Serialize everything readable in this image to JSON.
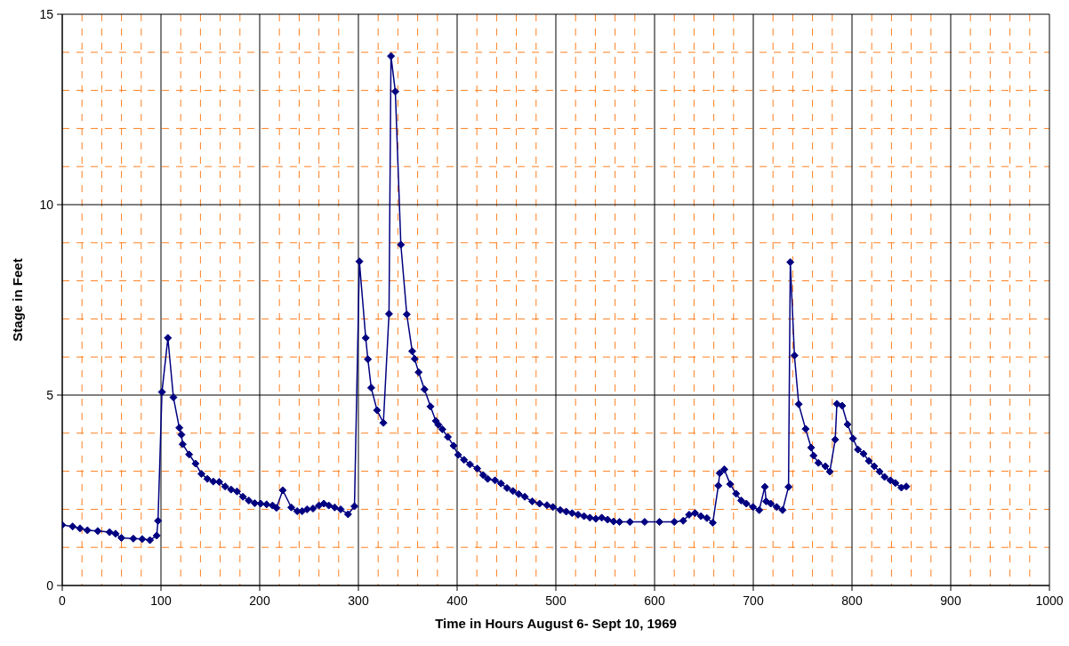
{
  "chart_data": {
    "type": "line",
    "xlabel": "Time in Hours August 6- Sept 10, 1969",
    "ylabel": "Stage in Feet",
    "x": [
      0,
      10.5,
      18,
      25.5,
      36,
      48,
      54,
      60,
      72,
      81,
      88.8,
      95.7,
      97,
      101,
      107,
      112.6,
      118.6,
      120.7,
      122,
      128.5,
      135,
      141,
      147,
      153,
      159,
      165,
      171,
      177,
      183,
      189,
      195,
      201,
      207,
      213,
      217,
      223.4,
      232,
      238,
      243,
      248,
      254,
      260,
      265,
      270,
      276,
      282,
      289.5,
      296,
      301,
      307.4,
      309.6,
      313,
      318.9,
      325.3,
      331,
      333,
      337.4,
      343,
      349,
      354.5,
      357,
      361,
      366.9,
      373,
      378.4,
      381,
      385,
      390.6,
      396.4,
      401,
      407,
      413,
      420.4,
      426.4,
      431,
      438.4,
      444.4,
      450.5,
      456.5,
      462.4,
      468.5,
      476,
      483.5,
      491,
      497,
      504.5,
      510.5,
      516.5,
      522.5,
      528.5,
      534.5,
      540.5,
      546.5,
      552.5,
      558.5,
      564.5,
      575,
      590,
      605,
      620,
      629,
      635,
      641,
      647,
      653,
      659,
      664.6,
      666,
      670.6,
      676.6,
      682.6,
      687.7,
      693,
      699.7,
      706,
      711.7,
      713,
      717.7,
      723.7,
      729.7,
      735.7,
      737.5,
      741.7,
      746,
      753,
      758.6,
      761,
      766,
      773,
      777.5,
      783,
      784.7,
      790,
      795.5,
      801,
      806,
      811.7,
      817,
      822.5,
      828,
      833,
      839,
      844,
      850,
      855
    ],
    "series": [
      {
        "color": "#000080",
        "values": [
          1.59,
          1.55,
          1.5,
          1.45,
          1.43,
          1.4,
          1.36,
          1.25,
          1.23,
          1.22,
          1.19,
          1.31,
          1.7,
          5.08,
          6.5,
          4.94,
          4.14,
          3.96,
          3.71,
          3.44,
          3.2,
          2.93,
          2.8,
          2.73,
          2.72,
          2.6,
          2.52,
          2.47,
          2.33,
          2.23,
          2.16,
          2.15,
          2.13,
          2.1,
          2.04,
          2.5,
          2.05,
          1.95,
          1.95,
          2.0,
          2.02,
          2.1,
          2.15,
          2.1,
          2.05,
          2.0,
          1.87,
          2.08,
          8.51,
          6.5,
          5.94,
          5.19,
          4.6,
          4.27,
          7.13,
          13.9,
          12.97,
          8.95,
          7.12,
          6.15,
          5.95,
          5.6,
          5.15,
          4.7,
          4.32,
          4.22,
          4.1,
          3.9,
          3.67,
          3.43,
          3.3,
          3.18,
          3.07,
          2.9,
          2.8,
          2.76,
          2.68,
          2.56,
          2.48,
          2.4,
          2.33,
          2.21,
          2.15,
          2.11,
          2.06,
          1.98,
          1.94,
          1.9,
          1.86,
          1.82,
          1.78,
          1.75,
          1.78,
          1.73,
          1.68,
          1.67,
          1.67,
          1.67,
          1.67,
          1.67,
          1.7,
          1.86,
          1.9,
          1.82,
          1.77,
          1.65,
          2.62,
          2.95,
          3.05,
          2.66,
          2.41,
          2.23,
          2.15,
          2.06,
          1.98,
          2.59,
          2.21,
          2.15,
          2.06,
          1.98,
          2.59,
          8.49,
          6.04,
          4.76,
          4.11,
          3.62,
          3.41,
          3.22,
          3.13,
          2.99,
          3.83,
          4.77,
          4.72,
          4.23,
          3.86,
          3.57,
          3.46,
          3.27,
          3.13,
          2.99,
          2.85,
          2.76,
          2.69,
          2.57,
          2.6
        ]
      }
    ],
    "xlim": [
      0,
      1000
    ],
    "xticks": [
      0,
      {
        "value": 20,
        "label": null
      },
      {
        "value": 40,
        "label": null
      },
      {
        "value": 60,
        "label": null
      },
      {
        "value": 80,
        "label": null
      },
      100,
      {
        "value": 120,
        "label": null
      },
      {
        "value": 140,
        "label": null
      },
      {
        "value": 160,
        "label": null
      },
      {
        "value": 180,
        "label": null
      },
      200,
      {
        "value": 220,
        "label": null
      },
      {
        "value": 240,
        "label": null
      },
      {
        "value": 260,
        "label": null
      },
      {
        "value": 280,
        "label": null
      },
      300,
      {
        "value": 320,
        "label": null
      },
      {
        "value": 340,
        "label": null
      },
      {
        "value": 360,
        "label": null
      },
      {
        "value": 380,
        "label": null
      },
      400,
      {
        "value": 420,
        "label": null
      },
      {
        "value": 440,
        "label": null
      },
      {
        "value": 460,
        "label": null
      },
      {
        "value": 480,
        "label": null
      },
      500,
      {
        "value": 520,
        "label": null
      },
      {
        "value": 540,
        "label": null
      },
      {
        "value": 560,
        "label": null
      },
      {
        "value": 580,
        "label": null
      },
      600,
      {
        "value": 620,
        "label": null
      },
      {
        "value": 640,
        "label": null
      },
      {
        "value": 660,
        "label": null
      },
      {
        "value": 680,
        "label": null
      },
      700,
      {
        "value": 720,
        "label": null
      },
      {
        "value": 740,
        "label": null
      },
      {
        "value": 760,
        "label": null
      },
      {
        "value": 780,
        "label": null
      },
      800,
      {
        "value": 820,
        "label": null
      },
      {
        "value": 840,
        "label": null
      },
      {
        "value": 860,
        "label": null
      },
      {
        "value": 880,
        "label": null
      },
      900,
      {
        "value": 920,
        "label": null
      },
      {
        "value": 940,
        "label": null
      },
      {
        "value": 960,
        "label": null
      },
      {
        "value": 980,
        "label": null
      },
      1000
    ],
    "ylim": [
      0,
      15
    ],
    "yticks": [
      0,
      {
        "value": 1,
        "label": null
      },
      {
        "value": 2,
        "label": null
      },
      {
        "value": 3,
        "label": null
      },
      {
        "value": 4,
        "label": null
      },
      5,
      {
        "value": 6,
        "label": null
      },
      {
        "value": 7,
        "label": null
      },
      {
        "value": 8,
        "label": null
      },
      {
        "value": 9,
        "label": null
      },
      10,
      {
        "value": 11,
        "label": null
      },
      {
        "value": 12,
        "label": null
      },
      {
        "value": 13,
        "label": null
      },
      {
        "value": 14,
        "label": null
      },
      15
    ],
    "grid": true,
    "marker": "diamond",
    "line_style": "solid",
    "legend": false
  }
}
